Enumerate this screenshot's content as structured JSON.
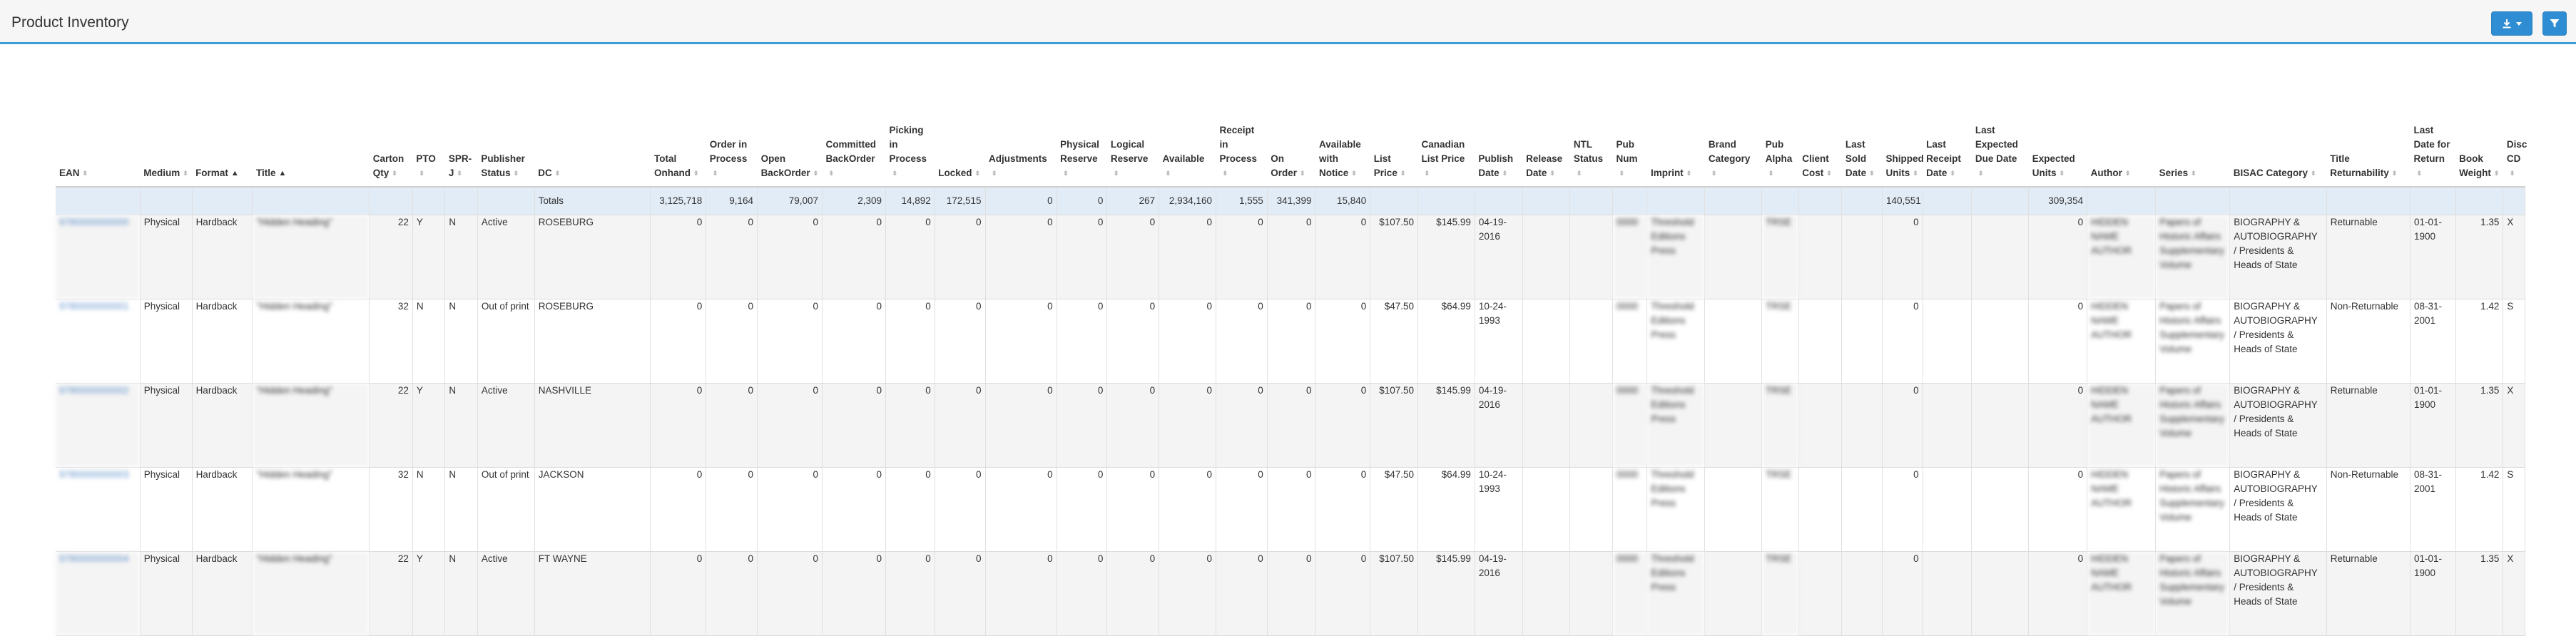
{
  "page": {
    "title": "Product Inventory"
  },
  "toolbar": {
    "download_icon": "download-icon",
    "caret_icon": "caret-down-icon",
    "filter_icon": "filter-icon",
    "accent": "#2f8ed3",
    "header_rule": "#3c9dd8"
  },
  "columns": [
    {
      "key": "ean",
      "label": "EAN"
    },
    {
      "key": "medium",
      "label": "Medium"
    },
    {
      "key": "format",
      "label": "Format",
      "sorted": "asc"
    },
    {
      "key": "title",
      "label": "Title",
      "sorted": "asc"
    },
    {
      "key": "carton_qty",
      "label": "Carton Qty"
    },
    {
      "key": "pto",
      "label": "PTO"
    },
    {
      "key": "sprj",
      "label": "SPR-J"
    },
    {
      "key": "publisher_status",
      "label": "Publisher Status"
    },
    {
      "key": "dc",
      "label": "DC"
    },
    {
      "key": "total_onhand",
      "label": "Total Onhand"
    },
    {
      "key": "order_in_process",
      "label": "Order in Process"
    },
    {
      "key": "open_backorder",
      "label": "Open BackOrder"
    },
    {
      "key": "committed_backorder",
      "label": "Committed BackOrder"
    },
    {
      "key": "picking_in_process",
      "label": "Picking in Process"
    },
    {
      "key": "locked",
      "label": "Locked"
    },
    {
      "key": "adjustments",
      "label": "Adjustments"
    },
    {
      "key": "physical_reserve",
      "label": "Physical Reserve"
    },
    {
      "key": "logical_reserve",
      "label": "Logical Reserve"
    },
    {
      "key": "available",
      "label": "Available"
    },
    {
      "key": "receipt_in_process",
      "label": "Receipt in Process"
    },
    {
      "key": "on_order",
      "label": "On Order"
    },
    {
      "key": "available_with_notice",
      "label": "Available with Notice"
    },
    {
      "key": "list_price",
      "label": "List Price"
    },
    {
      "key": "canadian_list_price",
      "label": "Canadian List Price"
    },
    {
      "key": "publish_date",
      "label": "Publish Date"
    },
    {
      "key": "release_date",
      "label": "Release Date"
    },
    {
      "key": "ntl_status",
      "label": "NTL Status"
    },
    {
      "key": "pub_num",
      "label": "Pub Num"
    },
    {
      "key": "imprint",
      "label": "Imprint"
    },
    {
      "key": "brand_category",
      "label": "Brand Category"
    },
    {
      "key": "pub_alpha",
      "label": "Pub Alpha"
    },
    {
      "key": "client_cost",
      "label": "Client Cost"
    },
    {
      "key": "last_sold_date",
      "label": "Last Sold Date"
    },
    {
      "key": "shipped_units",
      "label": "Shipped Units"
    },
    {
      "key": "last_receipt_date",
      "label": "Last Receipt Date"
    },
    {
      "key": "last_expected_due_date",
      "label": "Last Expected Due Date"
    },
    {
      "key": "expected_units",
      "label": "Expected Units"
    },
    {
      "key": "author",
      "label": "Author"
    },
    {
      "key": "series",
      "label": "Series"
    },
    {
      "key": "bisac_category",
      "label": "BISAC Category"
    },
    {
      "key": "title_returnability",
      "label": "Title Returnability"
    },
    {
      "key": "last_date_for_return",
      "label": "Last Date for Return"
    },
    {
      "key": "book_weight",
      "label": "Book Weight"
    },
    {
      "key": "disc_cd",
      "label": "Disc CD"
    }
  ],
  "totals": {
    "label": "Totals",
    "total_onhand": "3,125,718",
    "order_in_process": "9,164",
    "open_backorder": "79,007",
    "committed_backorder": "2,309",
    "picking_in_process": "14,892",
    "locked": "172,515",
    "adjustments": "0",
    "physical_reserve": "0",
    "logical_reserve": "267",
    "available": "2,934,160",
    "receipt_in_process": "1,555",
    "on_order": "341,399",
    "available_with_notice": "15,840",
    "shipped_units": "140,551",
    "expected_units": "309,354"
  },
  "rows": [
    {
      "ean": "9780000000000",
      "medium": "Physical",
      "format": "Hardback",
      "title": "\"Hidden Heading\"",
      "carton_qty": "22",
      "pto": "Y",
      "sprj": "N",
      "publisher_status": "Active",
      "dc": "ROSEBURG",
      "total_onhand": "0",
      "order_in_process": "0",
      "open_backorder": "0",
      "committed_backorder": "0",
      "picking_in_process": "0",
      "locked": "0",
      "adjustments": "0",
      "physical_reserve": "0",
      "logical_reserve": "0",
      "available": "0",
      "receipt_in_process": "0",
      "on_order": "0",
      "available_with_notice": "0",
      "list_price": "$107.50",
      "canadian_list_price": "$145.99",
      "publish_date": "04-19-2016",
      "release_date": "",
      "ntl_status": "",
      "pub_num": "0000",
      "imprint": "Threshold Editions Press",
      "brand_category": "",
      "pub_alpha": "TRSE",
      "client_cost": "",
      "last_sold_date": "",
      "shipped_units": "0",
      "last_receipt_date": "",
      "last_expected_due_date": "",
      "expected_units": "0",
      "author": "HIDDEN NAME AUTHOR",
      "series": "Papers of Historic Affairs Supplementary Volume",
      "bisac_category": "BIOGRAPHY & AUTOBIOGRAPHY / Presidents & Heads of State",
      "title_returnability": "Returnable",
      "last_date_for_return": "01-01-1900",
      "book_weight": "1.35",
      "disc_cd": "X"
    },
    {
      "ean": "9780000000001",
      "medium": "Physical",
      "format": "Hardback",
      "title": "\"Hidden Heading\"",
      "carton_qty": "32",
      "pto": "N",
      "sprj": "N",
      "publisher_status": "Out of print",
      "dc": "ROSEBURG",
      "total_onhand": "0",
      "order_in_process": "0",
      "open_backorder": "0",
      "committed_backorder": "0",
      "picking_in_process": "0",
      "locked": "0",
      "adjustments": "0",
      "physical_reserve": "0",
      "logical_reserve": "0",
      "available": "0",
      "receipt_in_process": "0",
      "on_order": "0",
      "available_with_notice": "0",
      "list_price": "$47.50",
      "canadian_list_price": "$64.99",
      "publish_date": "10-24-1993",
      "release_date": "",
      "ntl_status": "",
      "pub_num": "0000",
      "imprint": "Threshold Editions Press",
      "brand_category": "",
      "pub_alpha": "TRSE",
      "client_cost": "",
      "last_sold_date": "",
      "shipped_units": "0",
      "last_receipt_date": "",
      "last_expected_due_date": "",
      "expected_units": "0",
      "author": "HIDDEN NAME AUTHOR",
      "series": "Papers of Historic Affairs Supplementary Volume",
      "bisac_category": "BIOGRAPHY & AUTOBIOGRAPHY / Presidents & Heads of State",
      "title_returnability": "Non-Returnable",
      "last_date_for_return": "08-31-2001",
      "book_weight": "1.42",
      "disc_cd": "S"
    },
    {
      "ean": "9780000000002",
      "medium": "Physical",
      "format": "Hardback",
      "title": "\"Hidden Heading\"",
      "carton_qty": "22",
      "pto": "Y",
      "sprj": "N",
      "publisher_status": "Active",
      "dc": "NASHVILLE",
      "total_onhand": "0",
      "order_in_process": "0",
      "open_backorder": "0",
      "committed_backorder": "0",
      "picking_in_process": "0",
      "locked": "0",
      "adjustments": "0",
      "physical_reserve": "0",
      "logical_reserve": "0",
      "available": "0",
      "receipt_in_process": "0",
      "on_order": "0",
      "available_with_notice": "0",
      "list_price": "$107.50",
      "canadian_list_price": "$145.99",
      "publish_date": "04-19-2016",
      "release_date": "",
      "ntl_status": "",
      "pub_num": "0000",
      "imprint": "Threshold Editions Press",
      "brand_category": "",
      "pub_alpha": "TRSE",
      "client_cost": "",
      "last_sold_date": "",
      "shipped_units": "0",
      "last_receipt_date": "",
      "last_expected_due_date": "",
      "expected_units": "0",
      "author": "HIDDEN NAME AUTHOR",
      "series": "Papers of Historic Affairs Supplementary Volume",
      "bisac_category": "BIOGRAPHY & AUTOBIOGRAPHY / Presidents & Heads of State",
      "title_returnability": "Returnable",
      "last_date_for_return": "01-01-1900",
      "book_weight": "1.35",
      "disc_cd": "X"
    },
    {
      "ean": "9780000000003",
      "medium": "Physical",
      "format": "Hardback",
      "title": "\"Hidden Heading\"",
      "carton_qty": "32",
      "pto": "N",
      "sprj": "N",
      "publisher_status": "Out of print",
      "dc": "JACKSON",
      "total_onhand": "0",
      "order_in_process": "0",
      "open_backorder": "0",
      "committed_backorder": "0",
      "picking_in_process": "0",
      "locked": "0",
      "adjustments": "0",
      "physical_reserve": "0",
      "logical_reserve": "0",
      "available": "0",
      "receipt_in_process": "0",
      "on_order": "0",
      "available_with_notice": "0",
      "list_price": "$47.50",
      "canadian_list_price": "$64.99",
      "publish_date": "10-24-1993",
      "release_date": "",
      "ntl_status": "",
      "pub_num": "0000",
      "imprint": "Threshold Editions Press",
      "brand_category": "",
      "pub_alpha": "TRSE",
      "client_cost": "",
      "last_sold_date": "",
      "shipped_units": "0",
      "last_receipt_date": "",
      "last_expected_due_date": "",
      "expected_units": "0",
      "author": "HIDDEN NAME AUTHOR",
      "series": "Papers of Historic Affairs Supplementary Volume",
      "bisac_category": "BIOGRAPHY & AUTOBIOGRAPHY / Presidents & Heads of State",
      "title_returnability": "Non-Returnable",
      "last_date_for_return": "08-31-2001",
      "book_weight": "1.42",
      "disc_cd": "S"
    },
    {
      "ean": "9780000000004",
      "medium": "Physical",
      "format": "Hardback",
      "title": "\"Hidden Heading\"",
      "carton_qty": "22",
      "pto": "Y",
      "sprj": "N",
      "publisher_status": "Active",
      "dc": "FT WAYNE",
      "total_onhand": "0",
      "order_in_process": "0",
      "open_backorder": "0",
      "committed_backorder": "0",
      "picking_in_process": "0",
      "locked": "0",
      "adjustments": "0",
      "physical_reserve": "0",
      "logical_reserve": "0",
      "available": "0",
      "receipt_in_process": "0",
      "on_order": "0",
      "available_with_notice": "0",
      "list_price": "$107.50",
      "canadian_list_price": "$145.99",
      "publish_date": "04-19-2016",
      "release_date": "",
      "ntl_status": "",
      "pub_num": "0000",
      "imprint": "Threshold Editions Press",
      "brand_category": "",
      "pub_alpha": "TRSE",
      "client_cost": "",
      "last_sold_date": "",
      "shipped_units": "0",
      "last_receipt_date": "",
      "last_expected_due_date": "",
      "expected_units": "0",
      "author": "HIDDEN NAME AUTHOR",
      "series": "Papers of Historic Affairs Supplementary Volume",
      "bisac_category": "BIOGRAPHY & AUTOBIOGRAPHY / Presidents & Heads of State",
      "title_returnability": "Returnable",
      "last_date_for_return": "01-01-1900",
      "book_weight": "1.35",
      "disc_cd": "X"
    }
  ]
}
